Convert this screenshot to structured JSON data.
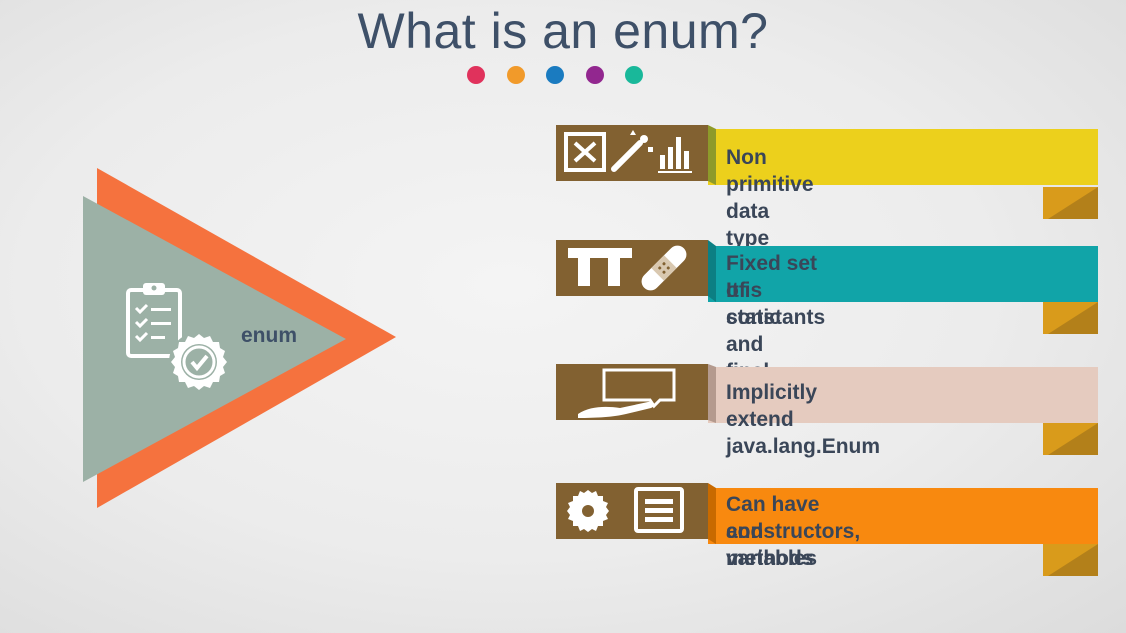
{
  "slide": {
    "title": "What is an enum?",
    "center_label": "enum",
    "dot_colors": [
      "#e0325c",
      "#f19a2a",
      "#1a7bc0",
      "#92278f",
      "#19b89a"
    ],
    "items": [
      {
        "text_line1": "Non primitive data type",
        "text_line2": "",
        "color": "#ecd01c",
        "icons": [
          "close-box-icon",
          "magic-wand-icon",
          "bar-chart-icon"
        ]
      },
      {
        "text_line1": "Fixed set of constants",
        "text_line2": "It is static and final",
        "color": "#11a4a8",
        "icons": [
          "text-tool-icon",
          "bandage-icon"
        ]
      },
      {
        "text_line1": "Implicitly extend java.lang.Enum",
        "text_line2": "",
        "color": "#e5cbbf",
        "icons": [
          "speech-bubble-hand-icon"
        ]
      },
      {
        "text_line1": "Can have constructors, methods",
        "text_line2": "and variables",
        "color": "#f8890f",
        "icons": [
          "gear-icon",
          "document-list-icon"
        ]
      }
    ],
    "triangle_colors": {
      "outer": "#f5723e",
      "inner": "#9cb1a6"
    },
    "icon_box_color": "#826131",
    "tail_color": "#d99b1b"
  }
}
